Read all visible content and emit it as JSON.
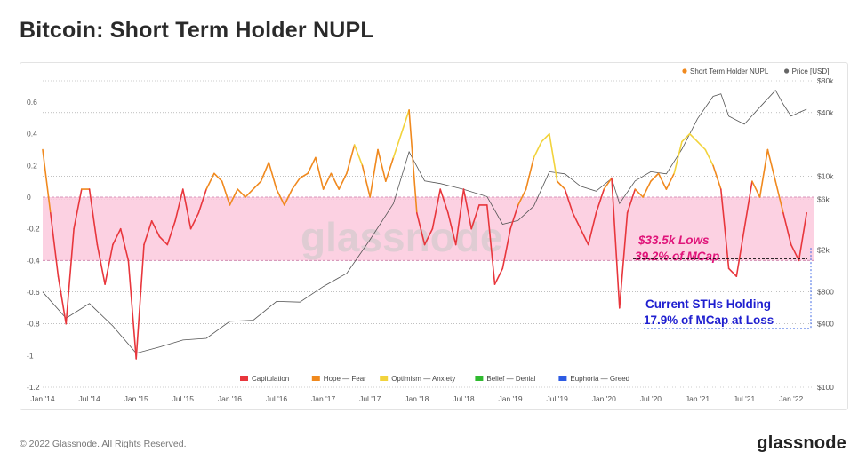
{
  "title": "Bitcoin: Short Term Holder NUPL",
  "footer": {
    "copyright": "© 2022 Glassnode. All Rights Reserved.",
    "logo": "glassnode"
  },
  "watermark": "glassnode",
  "colors": {
    "capitulation": "#e8363c",
    "hope_fear": "#f0891e",
    "optimism_anxiety": "#f2d33c",
    "belief_denial": "#2fba2f",
    "euphoria_greed": "#2d5be3",
    "price": "#555555",
    "band_fill": "#fbc9dd",
    "band_edge": "#cc7aa6",
    "pink_text": "#e0157a",
    "blue_text": "#1f1fd0"
  },
  "chart_data": {
    "type": "line",
    "top_legend": [
      {
        "label": "Short Term Holder NUPL",
        "color": "#f0891e"
      },
      {
        "label": "Price [USD]",
        "color": "#666666"
      }
    ],
    "bottom_legend": [
      {
        "label": "Capitulation",
        "color": "#e8363c"
      },
      {
        "label": "Hope — Fear",
        "color": "#f0891e"
      },
      {
        "label": "Optimism — Anxiety",
        "color": "#f2d33c"
      },
      {
        "label": "Belief — Denial",
        "color": "#2fba2f"
      },
      {
        "label": "Euphoria — Greed",
        "color": "#2d5be3"
      }
    ],
    "x_ticks": [
      "Jan '14",
      "Jul '14",
      "Jan '15",
      "Jul '15",
      "Jan '16",
      "Jul '16",
      "Jan '17",
      "Jul '17",
      "Jan '18",
      "Jul '18",
      "Jan '19",
      "Jul '19",
      "Jan '20",
      "Jul '20",
      "Jan '21",
      "Jul '21",
      "Jan '22"
    ],
    "y_left": {
      "ticks": [
        "0.6",
        "0.4",
        "0.2",
        "0",
        "-0.2",
        "-0.4",
        "-0.6",
        "-0.8",
        "-1",
        "-1.2"
      ],
      "ylim": [
        -1.2,
        0.7
      ]
    },
    "y_right": {
      "ticks": [
        "$80k",
        "$40k",
        "$10k",
        "$6k",
        "$2k",
        "$800",
        "$400",
        "$100"
      ],
      "scale": "log",
      "ylim": [
        100,
        80000
      ]
    },
    "band": {
      "from": 0,
      "to": -0.4
    },
    "annotations": {
      "lows_line1": "$33.5k Lows",
      "lows_line2": "39.2% of MCap",
      "holding_line1": "Current STHs Holding",
      "holding_line2": "17.9% of MCap at Loss"
    },
    "series": [
      {
        "name": "Short Term Holder NUPL",
        "points": [
          [
            "2014-01",
            0.3
          ],
          [
            "2014-02",
            -0.1
          ],
          [
            "2014-03",
            -0.5
          ],
          [
            "2014-04",
            -0.8
          ],
          [
            "2014-05",
            -0.2
          ],
          [
            "2014-06",
            0.05
          ],
          [
            "2014-07",
            0.05
          ],
          [
            "2014-08",
            -0.3
          ],
          [
            "2014-09",
            -0.55
          ],
          [
            "2014-10",
            -0.3
          ],
          [
            "2014-11",
            -0.2
          ],
          [
            "2014-12",
            -0.4
          ],
          [
            "2015-01",
            -1.02
          ],
          [
            "2015-02",
            -0.3
          ],
          [
            "2015-03",
            -0.15
          ],
          [
            "2015-04",
            -0.25
          ],
          [
            "2015-05",
            -0.3
          ],
          [
            "2015-06",
            -0.15
          ],
          [
            "2015-07",
            0.05
          ],
          [
            "2015-08",
            -0.2
          ],
          [
            "2015-09",
            -0.1
          ],
          [
            "2015-10",
            0.05
          ],
          [
            "2015-11",
            0.15
          ],
          [
            "2015-12",
            0.1
          ],
          [
            "2016-01",
            -0.05
          ],
          [
            "2016-02",
            0.05
          ],
          [
            "2016-03",
            0.0
          ],
          [
            "2016-04",
            0.05
          ],
          [
            "2016-05",
            0.1
          ],
          [
            "2016-06",
            0.22
          ],
          [
            "2016-07",
            0.05
          ],
          [
            "2016-08",
            -0.05
          ],
          [
            "2016-09",
            0.05
          ],
          [
            "2016-10",
            0.12
          ],
          [
            "2016-11",
            0.15
          ],
          [
            "2016-12",
            0.25
          ],
          [
            "2017-01",
            0.05
          ],
          [
            "2017-02",
            0.15
          ],
          [
            "2017-03",
            0.05
          ],
          [
            "2017-04",
            0.15
          ],
          [
            "2017-05",
            0.33
          ],
          [
            "2017-06",
            0.2
          ],
          [
            "2017-07",
            0.0
          ],
          [
            "2017-08",
            0.3
          ],
          [
            "2017-09",
            0.1
          ],
          [
            "2017-10",
            0.25
          ],
          [
            "2017-11",
            0.4
          ],
          [
            "2017-12",
            0.55
          ],
          [
            "2018-01",
            -0.1
          ],
          [
            "2018-02",
            -0.3
          ],
          [
            "2018-03",
            -0.2
          ],
          [
            "2018-04",
            0.05
          ],
          [
            "2018-05",
            -0.1
          ],
          [
            "2018-06",
            -0.3
          ],
          [
            "2018-07",
            0.05
          ],
          [
            "2018-08",
            -0.2
          ],
          [
            "2018-09",
            -0.05
          ],
          [
            "2018-10",
            -0.05
          ],
          [
            "2018-11",
            -0.55
          ],
          [
            "2018-12",
            -0.45
          ],
          [
            "2019-01",
            -0.2
          ],
          [
            "2019-02",
            -0.05
          ],
          [
            "2019-03",
            0.05
          ],
          [
            "2019-04",
            0.25
          ],
          [
            "2019-05",
            0.35
          ],
          [
            "2019-06",
            0.4
          ],
          [
            "2019-07",
            0.1
          ],
          [
            "2019-08",
            0.05
          ],
          [
            "2019-09",
            -0.1
          ],
          [
            "2019-10",
            -0.2
          ],
          [
            "2019-11",
            -0.3
          ],
          [
            "2019-12",
            -0.1
          ],
          [
            "2020-01",
            0.05
          ],
          [
            "2020-02",
            0.12
          ],
          [
            "2020-03",
            -0.7
          ],
          [
            "2020-04",
            -0.1
          ],
          [
            "2020-05",
            0.05
          ],
          [
            "2020-06",
            0.0
          ],
          [
            "2020-07",
            0.1
          ],
          [
            "2020-08",
            0.15
          ],
          [
            "2020-09",
            0.05
          ],
          [
            "2020-10",
            0.15
          ],
          [
            "2020-11",
            0.35
          ],
          [
            "2020-12",
            0.4
          ],
          [
            "2021-01",
            0.35
          ],
          [
            "2021-02",
            0.3
          ],
          [
            "2021-03",
            0.2
          ],
          [
            "2021-04",
            0.05
          ],
          [
            "2021-05",
            -0.45
          ],
          [
            "2021-06",
            -0.5
          ],
          [
            "2021-07",
            -0.2
          ],
          [
            "2021-08",
            0.1
          ],
          [
            "2021-09",
            0.0
          ],
          [
            "2021-10",
            0.3
          ],
          [
            "2021-11",
            0.1
          ],
          [
            "2021-12",
            -0.1
          ],
          [
            "2022-01",
            -0.3
          ],
          [
            "2022-02",
            -0.4
          ],
          [
            "2022-03",
            -0.1
          ]
        ]
      },
      {
        "name": "Price [USD]",
        "points": [
          [
            "2014-01",
            800
          ],
          [
            "2014-04",
            450
          ],
          [
            "2014-07",
            620
          ],
          [
            "2014-10",
            380
          ],
          [
            "2015-01",
            210
          ],
          [
            "2015-04",
            240
          ],
          [
            "2015-07",
            280
          ],
          [
            "2015-10",
            290
          ],
          [
            "2016-01",
            420
          ],
          [
            "2016-04",
            430
          ],
          [
            "2016-07",
            650
          ],
          [
            "2016-10",
            640
          ],
          [
            "2017-01",
            900
          ],
          [
            "2017-04",
            1200
          ],
          [
            "2017-07",
            2500
          ],
          [
            "2017-10",
            5500
          ],
          [
            "2017-12",
            17000
          ],
          [
            "2018-02",
            9000
          ],
          [
            "2018-04",
            8500
          ],
          [
            "2018-07",
            7500
          ],
          [
            "2018-10",
            6400
          ],
          [
            "2018-12",
            3500
          ],
          [
            "2019-02",
            3800
          ],
          [
            "2019-04",
            5200
          ],
          [
            "2019-06",
            11000
          ],
          [
            "2019-08",
            10500
          ],
          [
            "2019-10",
            8000
          ],
          [
            "2019-12",
            7200
          ],
          [
            "2020-02",
            9500
          ],
          [
            "2020-03",
            5500
          ],
          [
            "2020-05",
            9000
          ],
          [
            "2020-07",
            11000
          ],
          [
            "2020-09",
            10500
          ],
          [
            "2020-11",
            18000
          ],
          [
            "2021-01",
            35000
          ],
          [
            "2021-03",
            57000
          ],
          [
            "2021-04",
            60000
          ],
          [
            "2021-05",
            37000
          ],
          [
            "2021-07",
            31000
          ],
          [
            "2021-09",
            45000
          ],
          [
            "2021-11",
            65000
          ],
          [
            "2021-12",
            48000
          ],
          [
            "2022-01",
            37000
          ],
          [
            "2022-02",
            40000
          ],
          [
            "2022-03",
            43000
          ]
        ]
      }
    ]
  }
}
